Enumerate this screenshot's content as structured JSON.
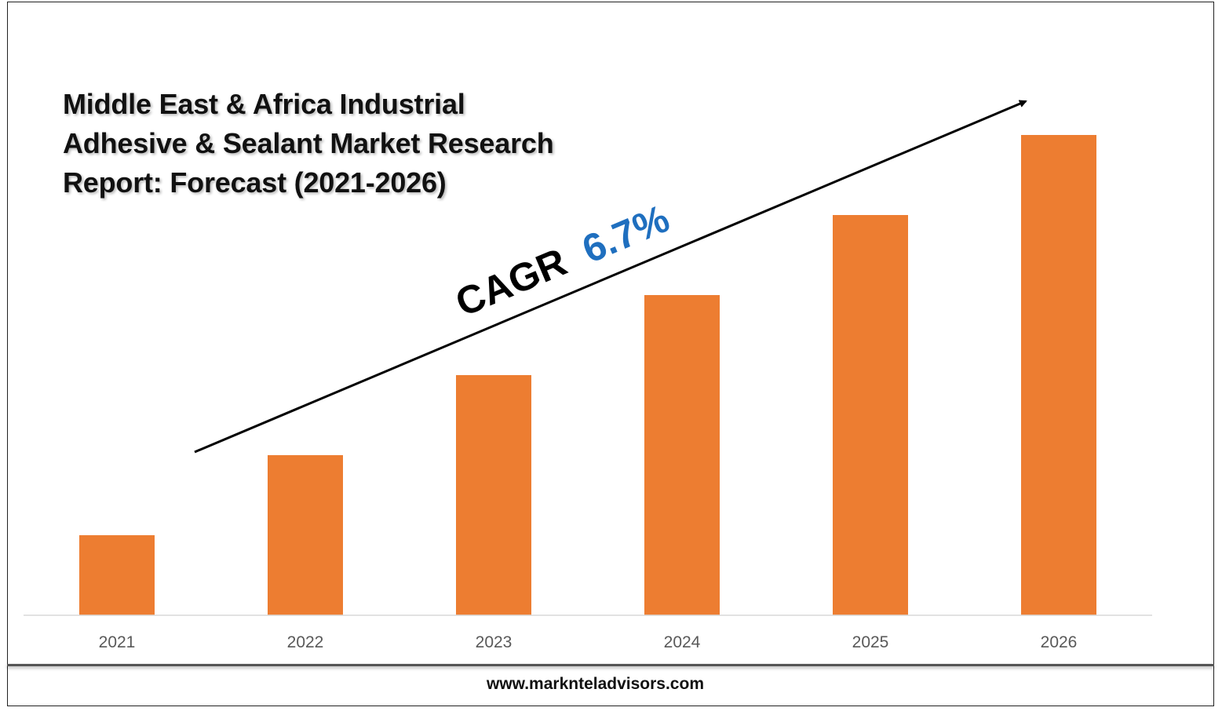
{
  "title_lines": [
    "Middle East & Africa Industrial",
    "Adhesive & Sealant Market Research",
    "Report: Forecast (2021-2026)"
  ],
  "annotation": {
    "label": "CAGR",
    "value": "6.7%",
    "label_color": "#000000",
    "value_color": "#1F6FBF"
  },
  "footer": "www.marknteladvisors.com",
  "colors": {
    "bar": "#ED7D31",
    "axis": "#D9D9D9",
    "tick_text": "#595959"
  },
  "chart_data": {
    "type": "bar",
    "categories": [
      "2021",
      "2022",
      "2023",
      "2024",
      "2025",
      "2026"
    ],
    "values": [
      1.0,
      2.0,
      3.0,
      4.0,
      5.0,
      6.0
    ],
    "ylim": [
      0,
      6.0
    ],
    "grid": false,
    "legend": "none",
    "xlabel": "",
    "ylabel": ""
  }
}
